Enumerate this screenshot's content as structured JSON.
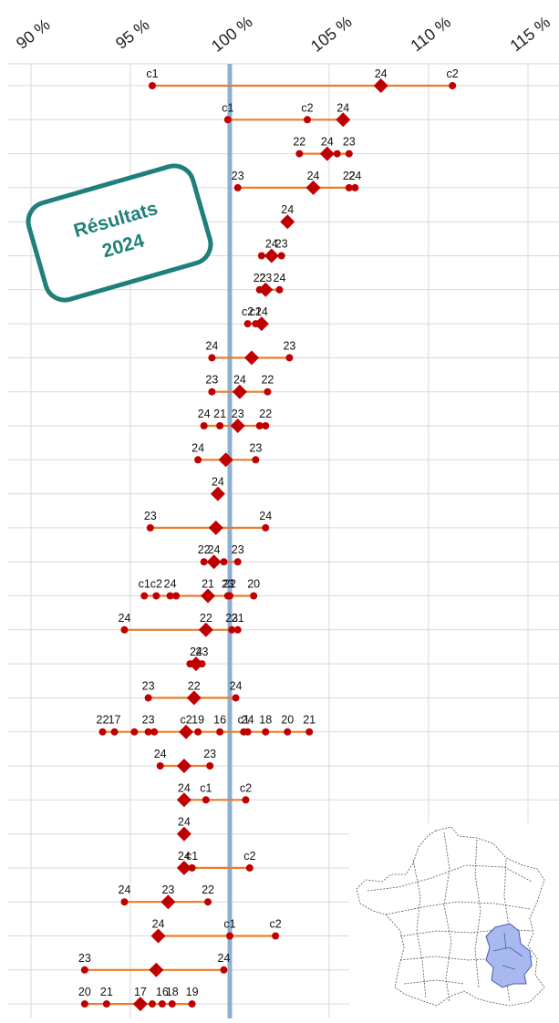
{
  "badge": {
    "line1": "Résultats",
    "line2": "2024"
  },
  "colors": {
    "line": "#e87d2f",
    "point": "#c00000",
    "reference": "#8eafd4",
    "grid": "#d9d9d9",
    "badge": "#1f7f7a",
    "region": "#a8b9ef"
  },
  "chart_data": {
    "type": "scatter",
    "title": "",
    "xlabel": "",
    "ylabel": "",
    "xlim": [
      87.5,
      116
    ],
    "reference_line": 100,
    "x_ticks": [
      "90 %",
      "95 %",
      "100 %",
      "105 %",
      "110 %",
      "115 %"
    ],
    "x_tick_values": [
      90,
      95,
      100,
      105,
      110,
      115
    ],
    "grid": true,
    "rows": [
      {
        "mark": 107.6,
        "points": [
          {
            "label": "c1",
            "x": 96.1
          },
          {
            "label": "24",
            "x": 107.6
          },
          {
            "label": "c2",
            "x": 111.2
          }
        ]
      },
      {
        "mark": 105.7,
        "points": [
          {
            "label": "c1",
            "x": 99.9
          },
          {
            "label": "c2",
            "x": 103.9
          },
          {
            "label": "24",
            "x": 105.7
          }
        ]
      },
      {
        "mark": 104.9,
        "points": [
          {
            "label": "22",
            "x": 103.5
          },
          {
            "label": "24",
            "x": 104.9
          },
          {
            "label": "",
            "x": 105.4
          },
          {
            "label": "23",
            "x": 106.0
          }
        ]
      },
      {
        "mark": 104.2,
        "points": [
          {
            "label": "23",
            "x": 100.4
          },
          {
            "label": "24",
            "x": 104.2
          },
          {
            "label": "22",
            "x": 106.0
          },
          {
            "label": "24",
            "x": 106.3
          }
        ]
      },
      {
        "mark": 102.9,
        "points": [
          {
            "label": "24",
            "x": 102.9
          }
        ]
      },
      {
        "mark": 102.1,
        "points": [
          {
            "label": "",
            "x": 101.6
          },
          {
            "label": "24",
            "x": 102.1
          },
          {
            "label": "23",
            "x": 102.6
          }
        ]
      },
      {
        "mark": 101.8,
        "points": [
          {
            "label": "22",
            "x": 101.5
          },
          {
            "label": "23",
            "x": 101.8
          },
          {
            "label": "24",
            "x": 102.5
          }
        ]
      },
      {
        "mark": 101.6,
        "points": [
          {
            "label": "c2",
            "x": 100.9
          },
          {
            "label": "c1",
            "x": 101.3
          },
          {
            "label": "24",
            "x": 101.6
          }
        ]
      },
      {
        "mark": 101.1,
        "points": [
          {
            "label": "24",
            "x": 99.1
          },
          {
            "label": "",
            "x": 101.1
          },
          {
            "label": "23",
            "x": 103.0
          }
        ]
      },
      {
        "mark": 100.5,
        "points": [
          {
            "label": "23",
            "x": 99.1
          },
          {
            "label": "24",
            "x": 100.5
          },
          {
            "label": "22",
            "x": 101.9
          }
        ]
      },
      {
        "mark": 100.4,
        "points": [
          {
            "label": "24",
            "x": 98.7
          },
          {
            "label": "21",
            "x": 99.5
          },
          {
            "label": "23",
            "x": 100.4
          },
          {
            "label": "",
            "x": 101.5
          },
          {
            "label": "22",
            "x": 101.8
          }
        ]
      },
      {
        "mark": 99.8,
        "points": [
          {
            "label": "24",
            "x": 98.4
          },
          {
            "label": "",
            "x": 99.8
          },
          {
            "label": "23",
            "x": 101.3
          }
        ]
      },
      {
        "mark": 99.4,
        "points": [
          {
            "label": "24",
            "x": 99.4
          }
        ]
      },
      {
        "mark": 99.3,
        "points": [
          {
            "label": "23",
            "x": 96.0
          },
          {
            "label": "",
            "x": 99.3
          },
          {
            "label": "24",
            "x": 101.8
          }
        ]
      },
      {
        "mark": 99.2,
        "points": [
          {
            "label": "22",
            "x": 98.7
          },
          {
            "label": "24",
            "x": 99.2
          },
          {
            "label": "",
            "x": 99.7
          },
          {
            "label": "23",
            "x": 100.4
          }
        ]
      },
      {
        "mark": 98.9,
        "points": [
          {
            "label": "c1",
            "x": 95.7
          },
          {
            "label": "c2",
            "x": 96.3
          },
          {
            "label": "24",
            "x": 97.0
          },
          {
            "label": "",
            "x": 97.3
          },
          {
            "label": "21",
            "x": 98.9
          },
          {
            "label": "23",
            "x": 99.9
          },
          {
            "label": "22",
            "x": 100.0
          },
          {
            "label": "20",
            "x": 101.2
          }
        ]
      },
      {
        "mark": 98.8,
        "points": [
          {
            "label": "24",
            "x": 94.7
          },
          {
            "label": "22",
            "x": 98.8
          },
          {
            "label": "23",
            "x": 100.1
          },
          {
            "label": "21",
            "x": 100.4
          }
        ]
      },
      {
        "mark": 98.3,
        "points": [
          {
            "label": "",
            "x": 98.0
          },
          {
            "label": "24",
            "x": 98.3
          },
          {
            "label": "23",
            "x": 98.6
          }
        ]
      },
      {
        "mark": 98.2,
        "points": [
          {
            "label": "23",
            "x": 95.9
          },
          {
            "label": "22",
            "x": 98.2
          },
          {
            "label": "24",
            "x": 100.3
          }
        ]
      },
      {
        "mark": 97.8,
        "points": [
          {
            "label": "22",
            "x": 93.6
          },
          {
            "label": "17",
            "x": 94.2
          },
          {
            "label": "",
            "x": 95.2
          },
          {
            "label": "23",
            "x": 95.9
          },
          {
            "label": "",
            "x": 96.2
          },
          {
            "label": "c2",
            "x": 97.8
          },
          {
            "label": "19",
            "x": 98.4
          },
          {
            "label": "16",
            "x": 99.5
          },
          {
            "label": "c1",
            "x": 100.7
          },
          {
            "label": "24",
            "x": 100.9
          },
          {
            "label": "18",
            "x": 101.8
          },
          {
            "label": "20",
            "x": 102.9
          },
          {
            "label": "21",
            "x": 104.0
          }
        ]
      },
      {
        "mark": 97.7,
        "points": [
          {
            "label": "24",
            "x": 96.5
          },
          {
            "label": "",
            "x": 97.7
          },
          {
            "label": "23",
            "x": 99.0
          }
        ]
      },
      {
        "mark": 97.7,
        "points": [
          {
            "label": "24",
            "x": 97.7
          },
          {
            "label": "c1",
            "x": 98.8
          },
          {
            "label": "c2",
            "x": 100.8
          }
        ]
      },
      {
        "mark": 97.7,
        "points": [
          {
            "label": "24",
            "x": 97.7
          }
        ]
      },
      {
        "mark": 97.7,
        "points": [
          {
            "label": "24",
            "x": 97.7
          },
          {
            "label": "c1",
            "x": 98.1
          },
          {
            "label": "c2",
            "x": 101.0
          }
        ]
      },
      {
        "mark": 96.9,
        "points": [
          {
            "label": "24",
            "x": 94.7
          },
          {
            "label": "23",
            "x": 96.9
          },
          {
            "label": "22",
            "x": 98.9
          }
        ]
      },
      {
        "mark": 96.4,
        "points": [
          {
            "label": "24",
            "x": 96.4
          },
          {
            "label": "c1",
            "x": 100.0
          },
          {
            "label": "c2",
            "x": 102.3
          }
        ]
      },
      {
        "mark": 96.3,
        "points": [
          {
            "label": "23",
            "x": 92.7
          },
          {
            "label": "24",
            "x": 99.7
          }
        ]
      },
      {
        "mark": 95.5,
        "points": [
          {
            "label": "20",
            "x": 92.7
          },
          {
            "label": "21",
            "x": 93.8
          },
          {
            "label": "17",
            "x": 95.5
          },
          {
            "label": "",
            "x": 96.1
          },
          {
            "label": "16",
            "x": 96.6
          },
          {
            "label": "18",
            "x": 97.1
          },
          {
            "label": "19",
            "x": 98.1
          }
        ]
      }
    ]
  }
}
